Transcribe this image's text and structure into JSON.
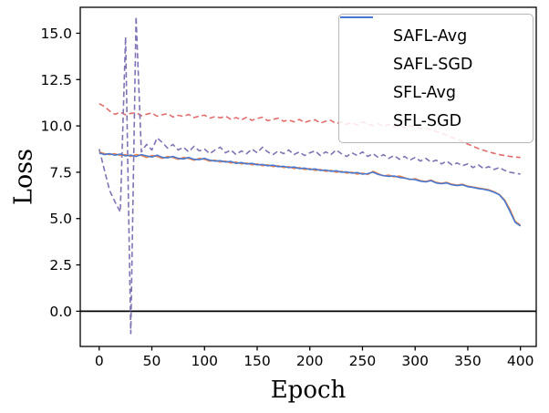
{
  "chart_data": {
    "type": "line",
    "title": "",
    "xlabel": "Epoch",
    "ylabel": "Loss",
    "xlim": [
      -18,
      415
    ],
    "ylim": [
      -1.9,
      16.4
    ],
    "xticks": [
      0,
      50,
      100,
      150,
      200,
      250,
      300,
      350,
      400
    ],
    "yticks": [
      0,
      2.5,
      5,
      7.5,
      10,
      12.5,
      15
    ],
    "axhline_y": 0,
    "grid": false,
    "legend_position": "upper right",
    "x_start": 0,
    "x_step": 5,
    "series": [
      {
        "name": "SAFL-Avg",
        "color": "#e26d6d",
        "dashed": true,
        "values": [
          11.2,
          11.05,
          10.8,
          10.62,
          10.75,
          10.6,
          10.68,
          10.72,
          10.55,
          10.63,
          10.7,
          10.52,
          10.6,
          10.67,
          10.48,
          10.57,
          10.51,
          10.62,
          10.45,
          10.53,
          10.58,
          10.42,
          10.5,
          10.44,
          10.52,
          10.36,
          10.45,
          10.33,
          10.46,
          10.3,
          10.4,
          10.47,
          10.28,
          10.35,
          10.42,
          10.25,
          10.32,
          10.22,
          10.35,
          10.18,
          10.28,
          10.33,
          10.15,
          10.25,
          10.3,
          10.12,
          10.22,
          10.08,
          10.18,
          10.05,
          10.22,
          10.1,
          10.02,
          10.12,
          9.98,
          10.08,
          9.95,
          10.05,
          9.9,
          10.0,
          9.95,
          9.85,
          9.9,
          9.78,
          9.7,
          9.6,
          9.5,
          9.38,
          9.28,
          9.15,
          9.02,
          8.9,
          8.78,
          8.68,
          8.6,
          8.52,
          8.45,
          8.4,
          8.35,
          8.32,
          8.3
        ]
      },
      {
        "name": "SAFL-SGD",
        "color": "#8172b3",
        "dashed": true,
        "values": [
          8.75,
          7.6,
          6.5,
          5.9,
          5.35,
          14.8,
          -1.2,
          15.9,
          8.6,
          9.0,
          8.7,
          9.35,
          9.1,
          8.8,
          9.0,
          8.7,
          8.85,
          8.6,
          8.9,
          8.65,
          8.75,
          8.5,
          8.7,
          8.85,
          8.55,
          8.7,
          8.45,
          8.65,
          8.5,
          8.75,
          8.55,
          8.85,
          8.6,
          8.45,
          8.65,
          8.5,
          8.7,
          8.45,
          8.6,
          8.4,
          8.55,
          8.65,
          8.4,
          8.6,
          8.45,
          8.7,
          8.5,
          8.35,
          8.55,
          8.4,
          8.6,
          8.35,
          8.5,
          8.3,
          8.45,
          8.25,
          8.4,
          8.2,
          8.35,
          8.15,
          8.3,
          8.1,
          8.25,
          8.05,
          8.15,
          7.95,
          8.1,
          7.9,
          8.0,
          7.85,
          7.95,
          7.75,
          7.9,
          7.7,
          7.8,
          7.65,
          7.75,
          7.6,
          7.5,
          7.45,
          7.4
        ]
      },
      {
        "name": "SFL-Avg",
        "color": "#ee854a",
        "dashed": false,
        "values": [
          8.6,
          8.5,
          8.45,
          8.5,
          8.4,
          8.45,
          8.35,
          8.45,
          8.4,
          8.3,
          8.4,
          8.35,
          8.25,
          8.35,
          8.3,
          8.2,
          8.3,
          8.25,
          8.15,
          8.25,
          8.2,
          8.1,
          8.15,
          8.05,
          8.1,
          8.0,
          8.05,
          7.95,
          8.0,
          7.9,
          7.95,
          7.85,
          7.9,
          7.8,
          7.85,
          7.75,
          7.8,
          7.7,
          7.75,
          7.65,
          7.7,
          7.6,
          7.65,
          7.55,
          7.6,
          7.5,
          7.55,
          7.45,
          7.5,
          7.4,
          7.45,
          7.38,
          7.55,
          7.42,
          7.3,
          7.35,
          7.25,
          7.3,
          7.2,
          7.1,
          7.15,
          7.05,
          7.0,
          7.08,
          6.95,
          6.9,
          6.95,
          6.85,
          6.8,
          6.85,
          6.75,
          6.7,
          6.65,
          6.6,
          6.55,
          6.45,
          6.3,
          6.0,
          5.5,
          4.85,
          4.65
        ]
      },
      {
        "name": "SFL-SGD",
        "color": "#4878d0",
        "dashed": false,
        "values": [
          8.55,
          8.45,
          8.5,
          8.42,
          8.48,
          8.38,
          8.42,
          8.35,
          8.45,
          8.38,
          8.32,
          8.42,
          8.3,
          8.28,
          8.35,
          8.25,
          8.22,
          8.3,
          8.2,
          8.18,
          8.25,
          8.15,
          8.1,
          8.12,
          8.05,
          8.08,
          7.98,
          8.02,
          7.95,
          7.98,
          7.9,
          7.92,
          7.85,
          7.88,
          7.8,
          7.82,
          7.75,
          7.78,
          7.7,
          7.72,
          7.65,
          7.68,
          7.6,
          7.62,
          7.55,
          7.58,
          7.5,
          7.52,
          7.45,
          7.48,
          7.4,
          7.42,
          7.5,
          7.38,
          7.32,
          7.28,
          7.3,
          7.22,
          7.18,
          7.12,
          7.1,
          7.02,
          6.98,
          7.05,
          6.92,
          6.88,
          6.92,
          6.82,
          6.78,
          6.82,
          6.72,
          6.68,
          6.62,
          6.58,
          6.52,
          6.42,
          6.28,
          5.95,
          5.4,
          4.8,
          4.6
        ]
      }
    ]
  }
}
